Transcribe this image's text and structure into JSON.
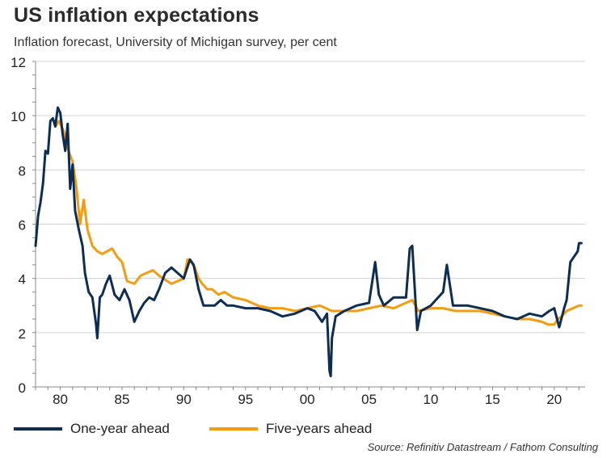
{
  "title": "US inflation expectations",
  "subtitle": "Inflation forecast, University of Michigan survey, per cent",
  "source": "Source: Refinitiv Datastream / Fathom Consulting",
  "colors": {
    "one_year": "#0d2d52",
    "five_year": "#f39c12",
    "grid": "#d0d0d0",
    "axis": "#888888"
  },
  "chart_data": {
    "type": "line",
    "xlim": [
      1978,
      2022.5
    ],
    "ylim": [
      0,
      12
    ],
    "y_ticks": [
      "0",
      "2",
      "4",
      "6",
      "8",
      "10",
      "12"
    ],
    "x_ticks": [
      {
        "value": 1980,
        "label": "80"
      },
      {
        "value": 1985,
        "label": "85"
      },
      {
        "value": 1990,
        "label": "90"
      },
      {
        "value": 1995,
        "label": "95"
      },
      {
        "value": 2000,
        "label": "00"
      },
      {
        "value": 2005,
        "label": "05"
      },
      {
        "value": 2010,
        "label": "10"
      },
      {
        "value": 2015,
        "label": "15"
      },
      {
        "value": 2020,
        "label": "20"
      }
    ],
    "grid": true,
    "legend_position": "bottom-left",
    "series": [
      {
        "name": "One-year ahead",
        "x": [
          1978.0,
          1978.2,
          1978.4,
          1978.6,
          1978.8,
          1979.0,
          1979.2,
          1979.4,
          1979.6,
          1979.8,
          1980.0,
          1980.2,
          1980.4,
          1980.6,
          1980.8,
          1981.0,
          1981.2,
          1981.5,
          1981.8,
          1982.0,
          1982.3,
          1982.6,
          1982.9,
          1983.0,
          1983.2,
          1983.4,
          1983.7,
          1984.0,
          1984.4,
          1984.8,
          1985.2,
          1985.6,
          1986.0,
          1986.4,
          1986.8,
          1987.2,
          1987.6,
          1988.0,
          1988.5,
          1989.0,
          1989.5,
          1990.0,
          1990.5,
          1990.8,
          1991.2,
          1991.6,
          1992.0,
          1992.5,
          1993.0,
          1993.5,
          1994.0,
          1995.0,
          1996.0,
          1997.0,
          1998.0,
          1999.0,
          2000.0,
          2000.6,
          2001.2,
          2001.6,
          2001.8,
          2001.9,
          2002.0,
          2002.3,
          2003.0,
          2004.0,
          2005.0,
          2005.5,
          2005.8,
          2006.2,
          2007.0,
          2008.0,
          2008.3,
          2008.5,
          2008.9,
          2009.2,
          2010.0,
          2011.0,
          2011.3,
          2011.8,
          2012.5,
          2013.0,
          2014.0,
          2015.0,
          2016.0,
          2017.0,
          2018.0,
          2019.0,
          2019.6,
          2020.0,
          2020.4,
          2020.8,
          2021.0,
          2021.3,
          2021.6,
          2021.9,
          2022.0,
          2022.2
        ],
        "y": [
          5.2,
          6.3,
          6.8,
          7.5,
          8.7,
          8.6,
          9.8,
          9.9,
          9.6,
          10.3,
          10.1,
          9.3,
          8.7,
          9.7,
          7.3,
          8.2,
          6.5,
          5.8,
          5.2,
          4.2,
          3.5,
          3.3,
          2.3,
          1.8,
          3.3,
          3.4,
          3.8,
          4.1,
          3.4,
          3.2,
          3.6,
          3.2,
          2.4,
          2.8,
          3.1,
          3.3,
          3.2,
          3.6,
          4.2,
          4.4,
          4.2,
          4.0,
          4.7,
          4.5,
          3.6,
          3.0,
          3.0,
          3.0,
          3.2,
          3.0,
          3.0,
          2.9,
          2.9,
          2.8,
          2.6,
          2.7,
          2.9,
          2.8,
          2.4,
          2.7,
          0.6,
          0.4,
          1.8,
          2.6,
          2.8,
          3.0,
          3.1,
          4.6,
          3.4,
          3.0,
          3.3,
          3.3,
          5.1,
          5.2,
          2.1,
          2.8,
          3.0,
          3.5,
          4.5,
          3.0,
          3.0,
          3.0,
          2.9,
          2.8,
          2.6,
          2.5,
          2.7,
          2.6,
          2.8,
          2.9,
          2.2,
          2.9,
          3.2,
          4.6,
          4.8,
          5.0,
          5.3,
          5.3
        ]
      },
      {
        "name": "Five-years ahead",
        "x": [
          1979.6,
          1979.9,
          1980.3,
          1980.6,
          1981.0,
          1981.3,
          1981.6,
          1981.9,
          1982.2,
          1982.6,
          1983.0,
          1983.4,
          1983.8,
          1984.2,
          1984.6,
          1985.0,
          1985.4,
          1986.0,
          1986.5,
          1987.0,
          1987.5,
          1988.0,
          1989.0,
          1989.5,
          1990.0,
          1990.3,
          1990.6,
          1990.9,
          1991.2,
          1991.5,
          1991.9,
          1992.3,
          1992.8,
          1993.3,
          1994.0,
          1995.0,
          1996.0,
          1997.0,
          1998.0,
          1999.0,
          2000.0,
          2001.0,
          2002.0,
          2003.0,
          2004.0,
          2005.0,
          2006.0,
          2007.0,
          2008.0,
          2008.5,
          2009.0,
          2010.0,
          2011.0,
          2012.0,
          2013.0,
          2014.0,
          2015.0,
          2016.0,
          2017.0,
          2018.0,
          2019.0,
          2019.5,
          2020.0,
          2020.3,
          2020.6,
          2021.0,
          2021.5,
          2022.0,
          2022.2
        ],
        "y": [
          9.6,
          9.8,
          9.4,
          8.8,
          8.3,
          7.4,
          6.0,
          6.9,
          5.8,
          5.2,
          5.0,
          4.9,
          5.0,
          5.1,
          4.8,
          4.6,
          3.9,
          3.8,
          4.1,
          4.2,
          4.3,
          4.1,
          3.8,
          3.9,
          4.0,
          4.7,
          4.6,
          4.4,
          4.0,
          3.8,
          3.6,
          3.6,
          3.4,
          3.5,
          3.3,
          3.2,
          3.0,
          2.9,
          2.9,
          2.8,
          2.9,
          3.0,
          2.8,
          2.8,
          2.8,
          2.9,
          3.0,
          2.9,
          3.1,
          3.2,
          2.8,
          2.9,
          2.9,
          2.8,
          2.8,
          2.8,
          2.7,
          2.6,
          2.5,
          2.5,
          2.4,
          2.3,
          2.3,
          2.5,
          2.6,
          2.8,
          2.9,
          3.0,
          3.0
        ]
      }
    ]
  },
  "legend": {
    "one_year_label": "One-year ahead",
    "five_year_label": "Five-years ahead"
  }
}
